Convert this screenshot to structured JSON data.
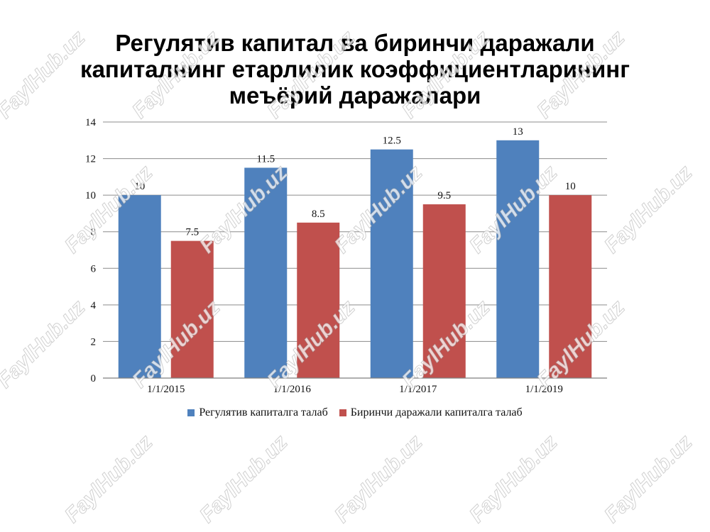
{
  "chart_data": {
    "type": "bar",
    "title_lines": [
      "Регулятив капитал ва биринчи даражали",
      "капиталнинг етарлилик коэффициентларининг",
      "меъёрий даражалари"
    ],
    "categories": [
      "1/1/2015",
      "1/1/2016",
      "1/1/2017",
      "1/1/2019"
    ],
    "series": [
      {
        "name": "Регулятив капиталга талаб",
        "values": [
          10,
          11.5,
          12.5,
          13
        ],
        "color": "#4F81BD"
      },
      {
        "name": "Биринчи даражали капиталга талаб",
        "values": [
          7.5,
          8.5,
          9.5,
          10
        ],
        "color": "#C0504D"
      }
    ],
    "yticks": [
      0,
      2,
      4,
      6,
      8,
      10,
      12,
      14
    ],
    "ylim": [
      0,
      14
    ],
    "grid": true,
    "legend_position": "bottom",
    "data_labels": true
  },
  "watermark": {
    "text": "FaylHub.uz"
  }
}
